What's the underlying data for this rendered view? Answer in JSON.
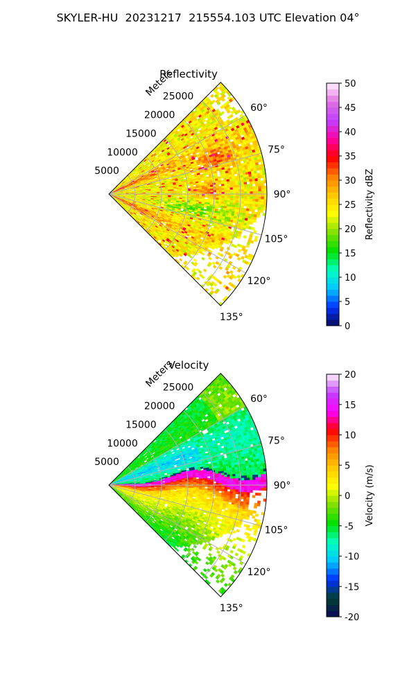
{
  "figure_title": "SKYLER-HU  20231217  215554.103 UTC Elevation 04°",
  "chart_data": [
    {
      "type": "heatmap",
      "subtype": "polar-sector",
      "title": "Reflectivity",
      "range_label": "Meters",
      "range_ticks": [
        "5000",
        "10000",
        "15000",
        "20000",
        "25000"
      ],
      "range_values": [
        5000,
        10000,
        15000,
        20000,
        25000
      ],
      "max_range": 30000,
      "azimuth_ticks": [
        "60°",
        "75°",
        "90°",
        "105°",
        "120°",
        "135°"
      ],
      "azimuth_values": [
        60,
        75,
        90,
        105,
        120,
        135
      ],
      "azimuth_range": [
        45,
        135
      ],
      "colorbar": {
        "label": "Reflectivity dBZ",
        "range": [
          0,
          50
        ],
        "ticks": [
          "0",
          "5",
          "10",
          "15",
          "20",
          "25",
          "30",
          "35",
          "40",
          "45",
          "50"
        ],
        "stops": [
          "#0a0a5a",
          "#0033ff",
          "#00c8ff",
          "#00ffc0",
          "#00e000",
          "#7fe000",
          "#ffff00",
          "#ffc800",
          "#ff8000",
          "#ff0000",
          "#ff00a0",
          "#c040ff",
          "#e070e0",
          "#fff0ff"
        ]
      },
      "field_description": "mostly 20-30 dBZ, stronger 35-40 dBZ streaks near radar along ~65° and ~115° radials"
    },
    {
      "type": "heatmap",
      "subtype": "polar-sector",
      "title": "Velocity",
      "range_label": "Meters",
      "range_ticks": [
        "5000",
        "10000",
        "15000",
        "20000",
        "25000"
      ],
      "range_values": [
        5000,
        10000,
        15000,
        20000,
        25000
      ],
      "max_range": 30000,
      "azimuth_ticks": [
        "60°",
        "75°",
        "90°",
        "105°",
        "120°",
        "135°"
      ],
      "azimuth_values": [
        60,
        75,
        90,
        105,
        120,
        135
      ],
      "azimuth_range": [
        45,
        135
      ],
      "colorbar": {
        "label": "Velocity (m/s)",
        "range": [
          -20,
          20
        ],
        "ticks": [
          "-20",
          "-15",
          "-10",
          "-5",
          "0",
          "5",
          "10",
          "15",
          "20"
        ],
        "stops": [
          "#0a0a5a",
          "#004030",
          "#0030ff",
          "#00c8ff",
          "#00ffc0",
          "#00e000",
          "#7fe000",
          "#ffff00",
          "#ffc800",
          "#ff8000",
          "#ff0000",
          "#ff00ff",
          "#c040ff",
          "#fff0ff"
        ]
      },
      "field_description": "-5 to -10 m/s north of ~83°, sharp shear to +12 to +16 m/s near 90°, +5 to 0 m/s south"
    }
  ]
}
